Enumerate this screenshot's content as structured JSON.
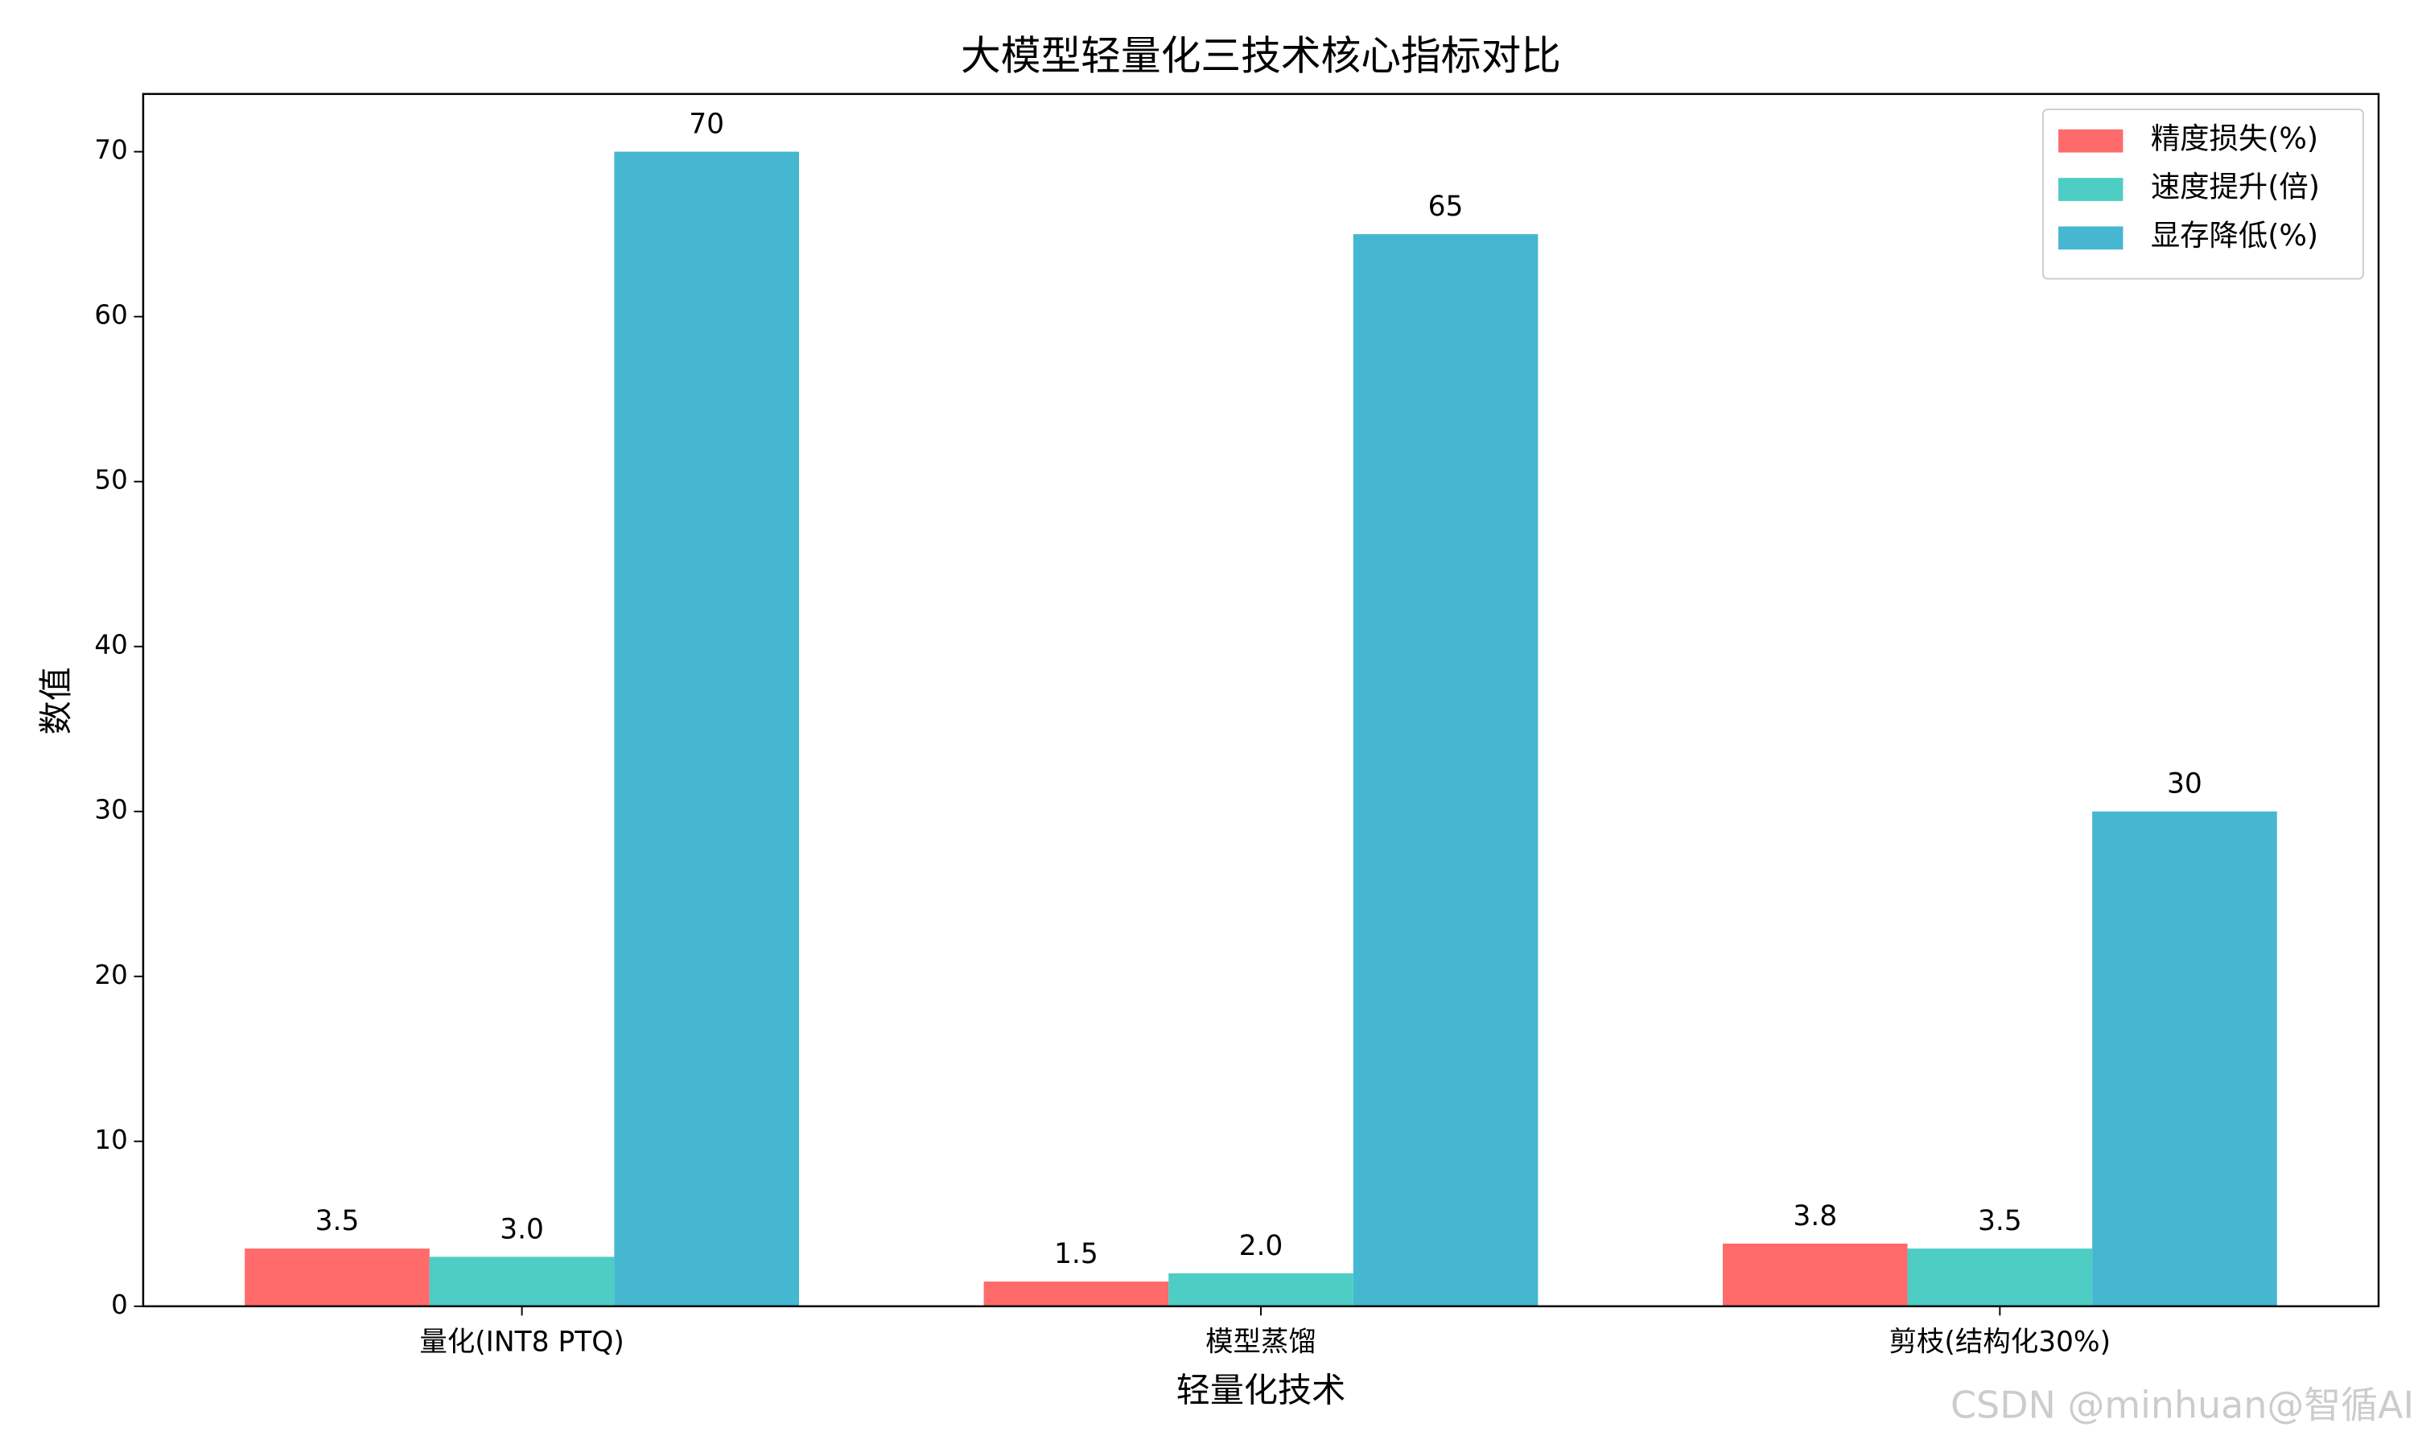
{
  "chart_data": {
    "type": "bar",
    "title": "大模型轻量化三技术核心指标对比",
    "x_label": "轻量化技术",
    "y_label": "数值",
    "categories": [
      "量化(INT8 PTQ)",
      "模型蒸馏",
      "剪枝(结构化30%)"
    ],
    "series": [
      {
        "name": "精度损失(%)",
        "color": "#ff6b6b",
        "values": [
          3.5,
          1.5,
          3.8
        ],
        "value_labels": [
          "3.5",
          "1.5",
          "3.8"
        ]
      },
      {
        "name": "速度提升(倍)",
        "color": "#4ecdc4",
        "values": [
          3.0,
          2.0,
          3.5
        ],
        "value_labels": [
          "3.0",
          "2.0",
          "3.5"
        ]
      },
      {
        "name": "显存降低(%)",
        "color": "#45b7d1",
        "values": [
          70,
          65,
          30
        ],
        "value_labels": [
          "70",
          "65",
          "30"
        ]
      }
    ],
    "ylim": [
      0,
      73.5
    ],
    "yticks": [
      0,
      10,
      20,
      30,
      40,
      50,
      60,
      70
    ],
    "legend": "upper right",
    "grid": false,
    "watermark": "CSDN @minhuan@智循AI"
  }
}
